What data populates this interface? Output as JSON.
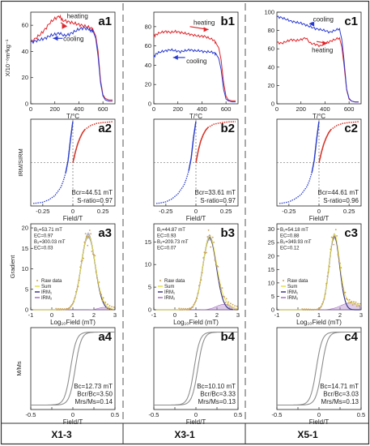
{
  "figure": {
    "columns": [
      "X1-3",
      "X3-1",
      "X5-1"
    ],
    "colors": {
      "heating": "#e0262b",
      "cooling": "#2b3bd0",
      "curve_red": "#d6362b",
      "curve_blue": "#2c3fc9",
      "sum": "#e6df4a",
      "irm1": "#3d3a8a",
      "irm2": "#a36fc2",
      "raw": "#c9a15a",
      "hyst": "#8d8d8d",
      "frame": "#333333"
    }
  },
  "chart_data": [
    {
      "id": "a1",
      "panel_label": "a1",
      "type": "line",
      "ylabel": "X/10⁻⁸m³kg⁻¹",
      "xlabel": "T/°C",
      "xlim": [
        0,
        700
      ],
      "ylim": [
        0,
        70
      ],
      "xticks": [
        0,
        200,
        400,
        600
      ],
      "yticks": [
        0,
        20,
        40,
        60
      ],
      "annotations": [
        "heating",
        "cooling"
      ],
      "series": [
        {
          "name": "heating",
          "color": "#e0262b",
          "x": [
            0,
            40,
            80,
            120,
            160,
            200,
            240,
            260,
            300,
            340,
            380,
            420,
            460,
            500,
            520,
            540,
            560,
            580,
            600,
            620,
            650,
            680
          ],
          "y": [
            47,
            50,
            53,
            57,
            62,
            65,
            67,
            64,
            63,
            62,
            61,
            60,
            59,
            58,
            56,
            52,
            40,
            18,
            7,
            4,
            3,
            3
          ]
        },
        {
          "name": "cooling",
          "color": "#2b3bd0",
          "x": [
            0,
            40,
            80,
            120,
            160,
            200,
            240,
            280,
            320,
            360,
            400,
            440,
            480,
            500,
            520,
            540,
            560,
            580,
            600,
            620,
            650,
            680
          ],
          "y": [
            47,
            48,
            49,
            50,
            52,
            53,
            54,
            52,
            53,
            55,
            57,
            58,
            57,
            56,
            55,
            50,
            36,
            16,
            6,
            3,
            2,
            2
          ]
        }
      ]
    },
    {
      "id": "b1",
      "panel_label": "b1",
      "type": "line",
      "xlabel": "T/°C",
      "xlim": [
        0,
        700
      ],
      "ylim": [
        0,
        95
      ],
      "xticks": [
        0,
        200,
        400,
        600
      ],
      "yticks": [
        0,
        20,
        40,
        60,
        80
      ],
      "annotations": [
        "heating",
        "cooling"
      ],
      "series": [
        {
          "name": "heating",
          "color": "#e0262b",
          "x": [
            0,
            20,
            60,
            100,
            140,
            180,
            220,
            260,
            300,
            340,
            380,
            420,
            460,
            500,
            520,
            540,
            560,
            580,
            600,
            620,
            650,
            680
          ],
          "y": [
            70,
            72,
            74,
            75,
            74,
            75,
            74,
            73,
            72,
            71,
            70,
            70,
            68,
            66,
            62,
            58,
            45,
            22,
            8,
            4,
            3,
            3
          ]
        },
        {
          "name": "cooling",
          "color": "#2b3bd0",
          "x": [
            0,
            20,
            60,
            100,
            140,
            180,
            220,
            260,
            300,
            340,
            380,
            420,
            460,
            500,
            520,
            540,
            560,
            580,
            600,
            620,
            650,
            680
          ],
          "y": [
            48,
            52,
            54,
            55,
            56,
            55,
            54,
            55,
            56,
            55,
            55,
            54,
            54,
            53,
            51,
            47,
            35,
            15,
            5,
            3,
            2,
            2
          ]
        }
      ]
    },
    {
      "id": "c1",
      "panel_label": "c1",
      "type": "line",
      "xlabel": "T/°C",
      "xlim": [
        0,
        700
      ],
      "ylim": [
        0,
        100
      ],
      "xticks": [
        0,
        200,
        400,
        600
      ],
      "yticks": [
        0,
        20,
        40,
        60,
        80,
        100
      ],
      "annotations": [
        "cooling",
        "heating"
      ],
      "series": [
        {
          "name": "heating",
          "color": "#e0262b",
          "x": [
            0,
            40,
            80,
            120,
            160,
            200,
            240,
            280,
            320,
            360,
            400,
            440,
            480,
            520,
            540,
            560,
            580,
            600,
            620,
            650,
            680
          ],
          "y": [
            67,
            66,
            68,
            70,
            69,
            70,
            72,
            66,
            65,
            63,
            66,
            68,
            70,
            72,
            62,
            40,
            15,
            5,
            3,
            2,
            2
          ]
        },
        {
          "name": "cooling",
          "color": "#2b3bd0",
          "x": [
            0,
            40,
            80,
            120,
            160,
            200,
            240,
            280,
            320,
            360,
            400,
            440,
            480,
            520,
            540,
            560,
            580,
            600,
            620,
            650,
            680
          ],
          "y": [
            95,
            94,
            92,
            90,
            89,
            88,
            86,
            84,
            82,
            81,
            80,
            78,
            80,
            82,
            70,
            45,
            16,
            6,
            3,
            2,
            2
          ]
        }
      ]
    },
    {
      "id": "a2",
      "panel_label": "a2",
      "type": "line",
      "ylabel": "IRM/SIRM",
      "xlabel": "Field/T",
      "xlim": [
        -0.35,
        0.35
      ],
      "ylim": [
        -1.05,
        1.05
      ],
      "xticks": [
        -0.25,
        0,
        0.25
      ],
      "yticks": [],
      "text": [
        "Bcr=44.51 mT",
        "S-ratio=0.97"
      ],
      "backfield": {
        "x": [
          -0.33,
          -0.3,
          -0.25,
          -0.2,
          -0.15,
          -0.1,
          -0.08,
          -0.06,
          -0.04,
          -0.02,
          0
        ],
        "y": [
          -0.99,
          -0.98,
          -0.96,
          -0.9,
          -0.8,
          -0.6,
          -0.45,
          -0.25,
          0.05,
          0.55,
          1.0
        ]
      },
      "acquisition": {
        "x": [
          0,
          0.01,
          0.02,
          0.04,
          0.06,
          0.08,
          0.1,
          0.15,
          0.2,
          0.25,
          0.3,
          0.33
        ],
        "y": [
          0,
          0.12,
          0.25,
          0.45,
          0.6,
          0.72,
          0.8,
          0.9,
          0.95,
          0.97,
          0.98,
          0.99
        ]
      }
    },
    {
      "id": "b2",
      "panel_label": "b2",
      "type": "line",
      "xlabel": "Field/T",
      "xlim": [
        -0.35,
        0.35
      ],
      "ylim": [
        -1.05,
        1.05
      ],
      "xticks": [
        -0.25,
        0,
        0.25
      ],
      "yticks": [],
      "text": [
        "Bcr=33.61 mT",
        "S-ratio=0.97"
      ],
      "backfield": {
        "x": [
          -0.33,
          -0.3,
          -0.25,
          -0.2,
          -0.15,
          -0.1,
          -0.08,
          -0.06,
          -0.04,
          -0.02,
          0
        ],
        "y": [
          -0.99,
          -0.98,
          -0.95,
          -0.88,
          -0.76,
          -0.55,
          -0.4,
          -0.2,
          0.1,
          0.6,
          1.0
        ]
      },
      "acquisition": {
        "x": [
          0,
          0.01,
          0.02,
          0.04,
          0.06,
          0.08,
          0.1,
          0.15,
          0.2,
          0.25,
          0.3,
          0.33
        ],
        "y": [
          0,
          0.15,
          0.3,
          0.52,
          0.67,
          0.78,
          0.85,
          0.93,
          0.96,
          0.98,
          0.99,
          0.99
        ]
      }
    },
    {
      "id": "c2",
      "panel_label": "c2",
      "type": "line",
      "xlabel": "Field/T",
      "xlim": [
        -0.35,
        0.35
      ],
      "ylim": [
        -1.05,
        1.05
      ],
      "xticks": [
        -0.25,
        0,
        0.25
      ],
      "yticks": [],
      "text": [
        "Bcr=44.61 mT",
        "S-ratio=0.96"
      ],
      "backfield": {
        "x": [
          -0.33,
          -0.3,
          -0.25,
          -0.2,
          -0.15,
          -0.1,
          -0.08,
          -0.06,
          -0.04,
          -0.02,
          0
        ],
        "y": [
          -0.99,
          -0.98,
          -0.95,
          -0.88,
          -0.78,
          -0.58,
          -0.44,
          -0.25,
          0.05,
          0.55,
          1.0
        ]
      },
      "acquisition": {
        "x": [
          0,
          0.01,
          0.02,
          0.04,
          0.06,
          0.08,
          0.1,
          0.15,
          0.2,
          0.25,
          0.3,
          0.33
        ],
        "y": [
          0,
          0.12,
          0.25,
          0.45,
          0.6,
          0.72,
          0.8,
          0.9,
          0.95,
          0.97,
          0.98,
          0.99
        ]
      }
    },
    {
      "id": "a3",
      "panel_label": "a3",
      "type": "line",
      "ylabel": "Gradient",
      "xlabel": "Log₁₀Field (mT)",
      "xlim": [
        -1,
        3
      ],
      "ylim": [
        0,
        21
      ],
      "xticks": [
        -1,
        0,
        1,
        2,
        3
      ],
      "yticks": [
        0,
        5,
        10,
        15,
        20
      ],
      "params": [
        "B₁=53.71 mT",
        "EC=0.97",
        "B₂=300.03 mT",
        "EC=0.03"
      ],
      "legend": [
        "Raw data",
        "Sum",
        "IRM₁",
        "IRM₂"
      ],
      "components": [
        {
          "mu": 1.73,
          "sd": 0.33,
          "amp": 18.2
        },
        {
          "mu": 2.48,
          "sd": 0.25,
          "amp": 0.6
        }
      ]
    },
    {
      "id": "b3",
      "panel_label": "b3",
      "type": "line",
      "xlabel": "Log₁₀Field (mT)",
      "xlim": [
        -1,
        3
      ],
      "ylim": [
        0,
        19
      ],
      "xticks": [
        -1,
        0,
        1,
        2,
        3
      ],
      "yticks": [
        0,
        5,
        10,
        15
      ],
      "params": [
        "B₁=44.87 mT",
        "EC=0.93",
        "B₂=209.73 mT",
        "EC=0.07"
      ],
      "legend": [
        "Raw data",
        "Sum",
        "IRM₁",
        "IRM₂"
      ],
      "components": [
        {
          "mu": 1.65,
          "sd": 0.32,
          "amp": 16.0
        },
        {
          "mu": 2.32,
          "sd": 0.35,
          "amp": 1.2
        }
      ]
    },
    {
      "id": "c3",
      "panel_label": "c3",
      "type": "line",
      "xlabel": "Log₁₀Field (mT)",
      "xlim": [
        -1,
        3
      ],
      "ylim": [
        0,
        32
      ],
      "xticks": [
        -1,
        0,
        1,
        2,
        3
      ],
      "yticks": [
        0,
        5,
        10,
        15,
        20,
        25,
        30
      ],
      "params": [
        "B₁=54.18 mT",
        "EC=0.88",
        "B₂=349.93 mT",
        "EC=0.12"
      ],
      "legend": [
        "Raw data",
        "Sum",
        "IRM₁",
        "IRM₂"
      ],
      "components": [
        {
          "mu": 1.73,
          "sd": 0.25,
          "amp": 27.5
        },
        {
          "mu": 2.5,
          "sd": 0.45,
          "amp": 2.6
        }
      ]
    },
    {
      "id": "a4",
      "panel_label": "a4",
      "type": "line",
      "ylabel": "M/Ms",
      "xlabel": "Field/T",
      "xlim": [
        -0.5,
        0.5
      ],
      "ylim": [
        -1.1,
        1.1
      ],
      "xticks": [
        -0.5,
        -0.25,
        0,
        0.25,
        0.5
      ],
      "xticklabels": [
        "-0.5",
        "0",
        "0.5"
      ],
      "text": [
        "Bc=12.73 mT",
        "Bcr/Bc=3.50",
        "Mrs/Ms=0.14"
      ],
      "hysteresis": {
        "Bc": 0.0127,
        "Mrs": 0.14
      }
    },
    {
      "id": "b4",
      "panel_label": "b4",
      "type": "line",
      "xlabel": "Field/T",
      "xlim": [
        -0.5,
        0.5
      ],
      "ylim": [
        -1.1,
        1.1
      ],
      "xticks": [
        -0.5,
        -0.25,
        0,
        0.25,
        0.5
      ],
      "xticklabels": [
        "-0.5",
        "0",
        "0.5"
      ],
      "text": [
        "Bc=10.10 mT",
        "Bcr/Bc=3.33",
        "Mrs/Ms=0.13"
      ],
      "hysteresis": {
        "Bc": 0.0101,
        "Mrs": 0.13
      }
    },
    {
      "id": "c4",
      "panel_label": "c4",
      "type": "line",
      "xlabel": "Field/T",
      "xlim": [
        -0.5,
        0.5
      ],
      "ylim": [
        -1.1,
        1.1
      ],
      "xticks": [
        -0.5,
        -0.25,
        0,
        0.25,
        0.5
      ],
      "xticklabels": [
        "-0.5",
        "0",
        "0.5"
      ],
      "text": [
        "Bc=14.71 mT",
        "Bcr/Bc=3.03",
        "Mrs/Ms=0.13"
      ],
      "hysteresis": {
        "Bc": 0.0147,
        "Mrs": 0.13
      }
    }
  ]
}
